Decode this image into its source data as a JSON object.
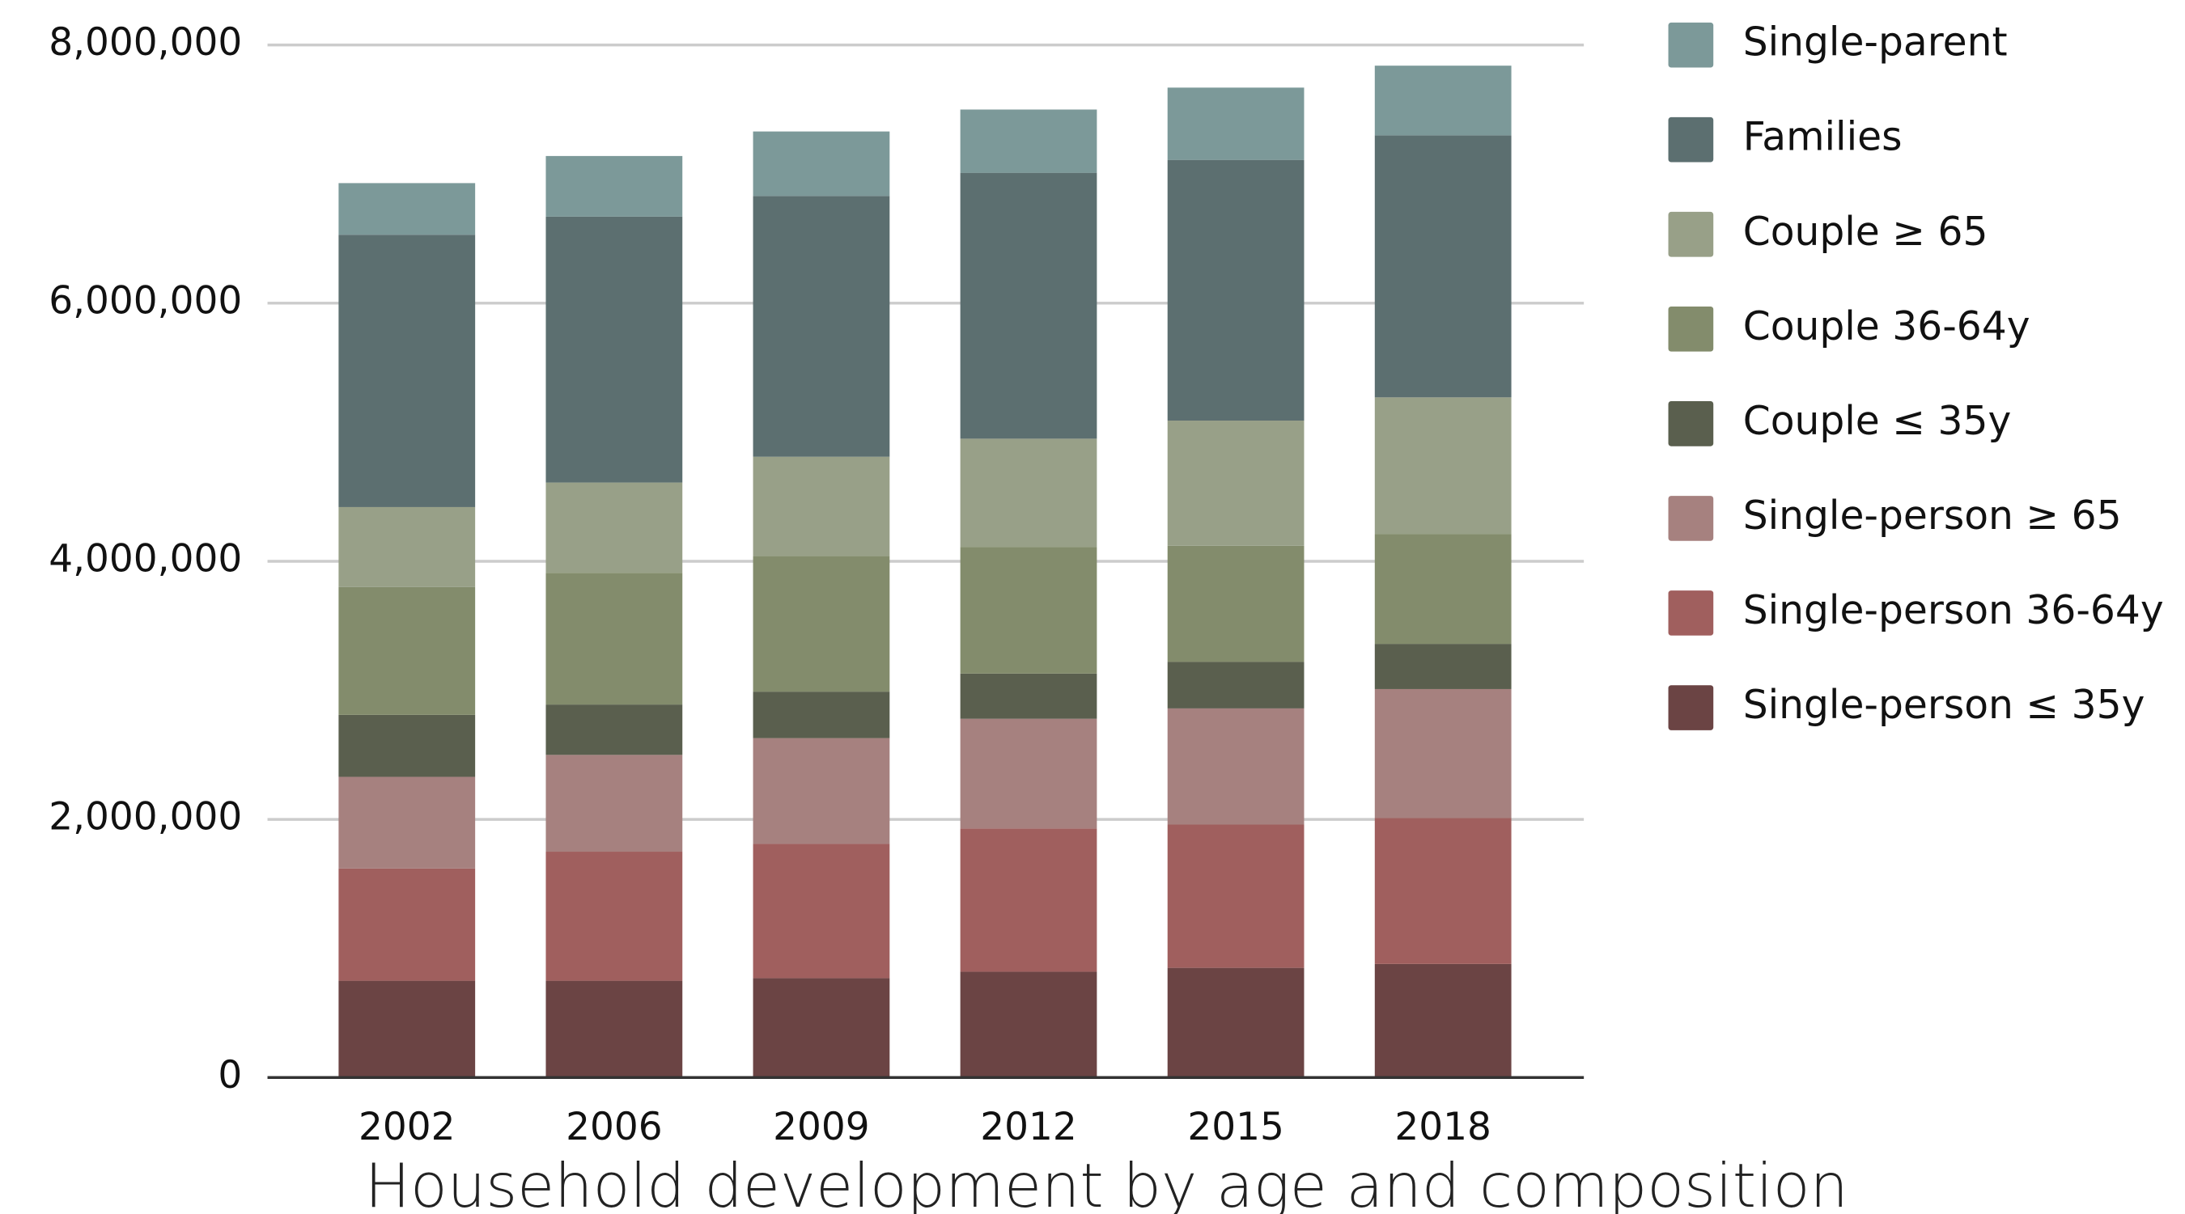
{
  "chart_data": {
    "type": "stacked_bar",
    "title": "Household development by age and composition",
    "categories": [
      "2002",
      "2006",
      "2009",
      "2012",
      "2015",
      "2018"
    ],
    "series": [
      {
        "name": "Single-person ≤ 35y",
        "color": "#6b4444",
        "values": [
          750000,
          750000,
          770000,
          820000,
          850000,
          880000
        ]
      },
      {
        "name": "Single-person 36-64y",
        "color": "#a05f5e",
        "values": [
          870000,
          1000000,
          1040000,
          1110000,
          1110000,
          1130000
        ]
      },
      {
        "name": "Single-person ≥ 65",
        "color": "#a6817f",
        "values": [
          710000,
          750000,
          820000,
          850000,
          900000,
          1000000
        ]
      },
      {
        "name": "Couple ≤ 35y",
        "color": "#5a5f4e",
        "values": [
          480000,
          390000,
          360000,
          350000,
          360000,
          350000
        ]
      },
      {
        "name": "Couple 36-64y",
        "color": "#838c6c",
        "values": [
          990000,
          1020000,
          1050000,
          980000,
          900000,
          850000
        ]
      },
      {
        "name": "Couple ≥ 65",
        "color": "#98a088",
        "values": [
          620000,
          700000,
          770000,
          840000,
          970000,
          1060000
        ]
      },
      {
        "name": "Families",
        "color": "#5c6f70",
        "values": [
          2110000,
          2060000,
          2020000,
          2060000,
          2020000,
          2030000
        ]
      },
      {
        "name": "Single-parent",
        "color": "#7c9999",
        "values": [
          400000,
          470000,
          500000,
          490000,
          560000,
          540000
        ]
      }
    ],
    "ylim": [
      0,
      8000000
    ],
    "yticks": [
      0,
      {
        "value": 2000000,
        "label": "2,000,000"
      },
      {
        "value": 4000000,
        "label": "4,000,000"
      },
      {
        "value": 6000000,
        "label": "6,000,000"
      },
      {
        "value": 8000000,
        "label": "8,000,000"
      }
    ],
    "grid": true,
    "legend": "right"
  }
}
